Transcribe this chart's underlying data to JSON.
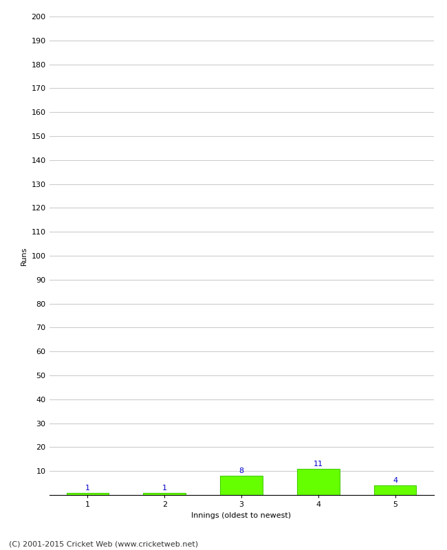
{
  "categories": [
    1,
    2,
    3,
    4,
    5
  ],
  "values": [
    1,
    1,
    8,
    11,
    4
  ],
  "bar_color": "#66ff00",
  "bar_edge_color": "#44cc00",
  "label_color": "#0000cc",
  "xlabel": "Innings (oldest to newest)",
  "ylabel": "Runs",
  "ylim": [
    0,
    200
  ],
  "yticks": [
    0,
    10,
    20,
    30,
    40,
    50,
    60,
    70,
    80,
    90,
    100,
    110,
    120,
    130,
    140,
    150,
    160,
    170,
    180,
    190,
    200
  ],
  "grid_color": "#cccccc",
  "background_color": "#ffffff",
  "footer_text": "(C) 2001-2015 Cricket Web (www.cricketweb.net)",
  "label_fontsize": 8,
  "axis_fontsize": 8,
  "footer_fontsize": 8,
  "bar_width": 0.55
}
